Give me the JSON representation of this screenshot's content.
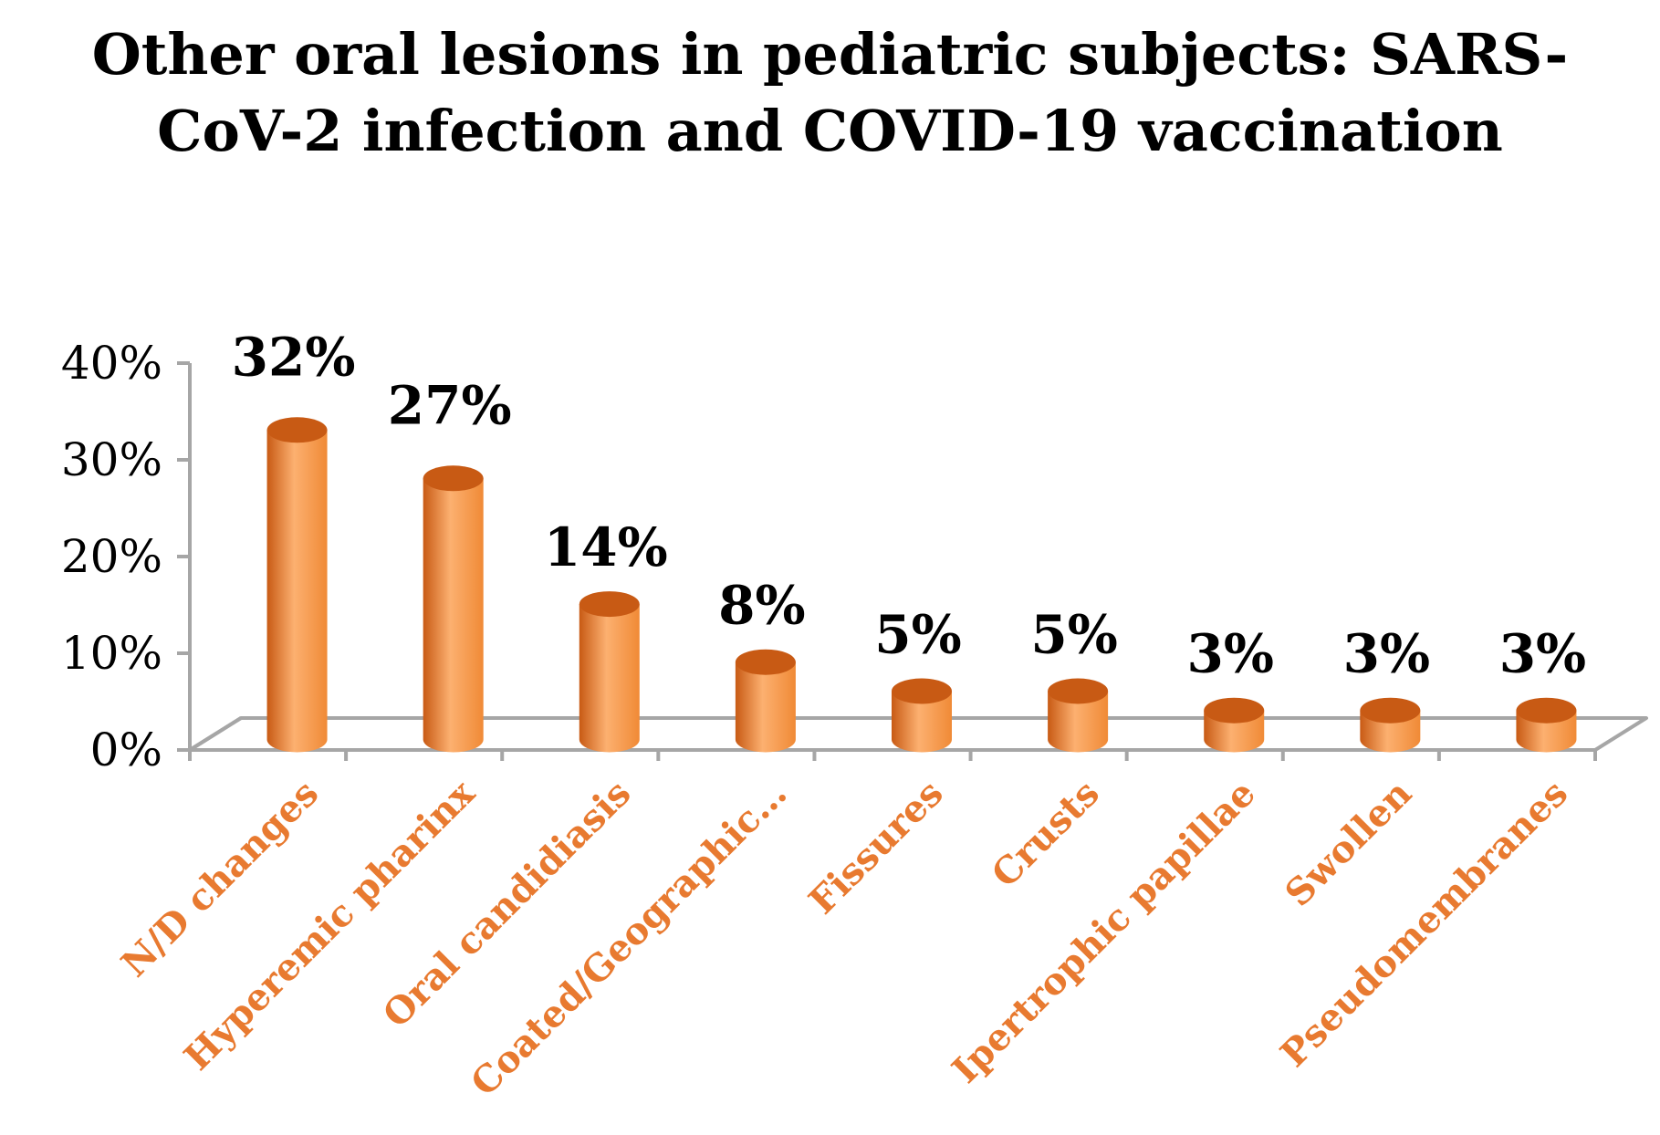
{
  "chart_data": {
    "type": "bar",
    "title": "Other oral lesions in pediatric subjects: SARS-CoV-2 infection and COVID-19 vaccination",
    "title_lines": [
      "Other oral lesions in pediatric subjects: SARS-",
      "CoV-2 infection and COVID-19 vaccination"
    ],
    "categories": [
      "N/D changes",
      "Hyperemic pharinx",
      "Oral candidiasis",
      "Coated/Geographic…",
      "Fissures",
      "Crusts",
      "Ipertrophic papillae",
      "Swollen",
      "Pseudomembranes"
    ],
    "values": [
      32,
      27,
      14,
      8,
      5,
      5,
      3,
      3,
      3
    ],
    "data_labels": [
      "32%",
      "27%",
      "14%",
      "8%",
      "5%",
      "5%",
      "3%",
      "3%",
      "3%"
    ],
    "y_ticks": [
      "0%",
      "10%",
      "20%",
      "30%",
      "40%"
    ],
    "ylim": [
      0,
      40
    ],
    "xlabel": "",
    "ylabel": "",
    "colors": {
      "bar": "#f08a36",
      "bar_dark": "#c85a14",
      "bar_light": "#fcb070",
      "category_label": "#e87a30",
      "axis": "#a6a6a6"
    }
  }
}
